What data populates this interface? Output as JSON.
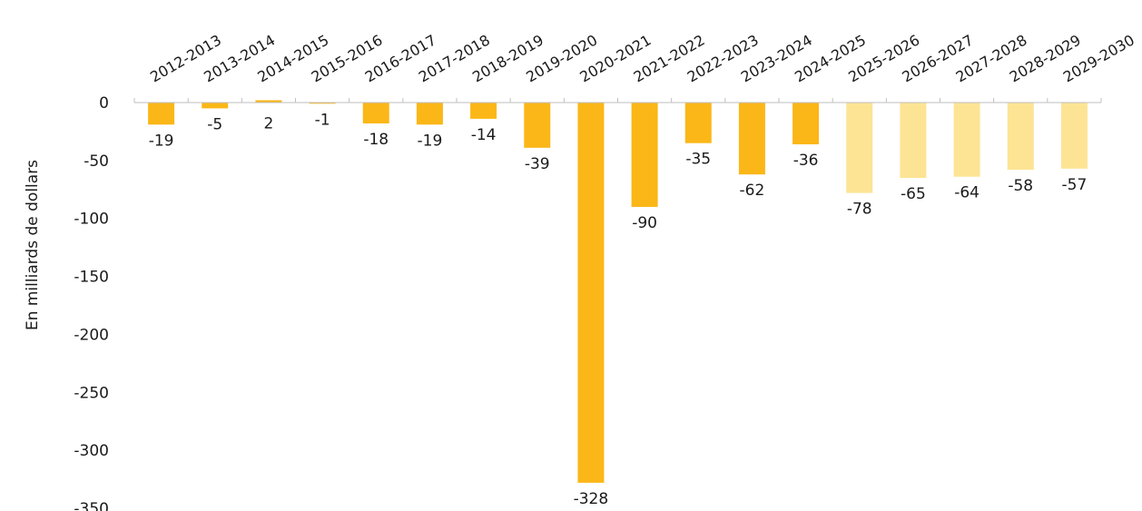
{
  "chart_data": {
    "type": "bar",
    "title": "",
    "xlabel": "",
    "ylabel": "En milliards de dollars",
    "ylim": [
      -350,
      0
    ],
    "y_ticks": [
      0,
      -50,
      -100,
      -150,
      -200,
      -250,
      -300,
      -350
    ],
    "categories": [
      "2012-2013",
      "2013-2014",
      "2014-2015",
      "2015-2016",
      "2016-2017",
      "2017-2018",
      "2018-2019",
      "2019-2020",
      "2020-2021",
      "2021-2022",
      "2022-2023",
      "2023-2024",
      "2024-2025",
      "2025-2026",
      "2026-2027",
      "2027-2028",
      "2028-2029",
      "2029-2030"
    ],
    "values": [
      -19,
      -5,
      2,
      -1,
      -18,
      -19,
      -14,
      -39,
      -328,
      -90,
      -35,
      -62,
      -36,
      -78,
      -65,
      -64,
      -58,
      -57
    ],
    "data_labels": [
      "-19",
      "-5",
      "2",
      "-1",
      "-18",
      "-19",
      "-14",
      "-39",
      "-328",
      "-90",
      "-35",
      "-62",
      "-36",
      "-78",
      "-65",
      "-64",
      "-58",
      "-57"
    ],
    "projected_from_index": 13,
    "colors": {
      "actual": "#FBB718",
      "projected": "#FDE494",
      "axis": "#BFBFBF"
    },
    "grid": false,
    "legend": "none"
  }
}
